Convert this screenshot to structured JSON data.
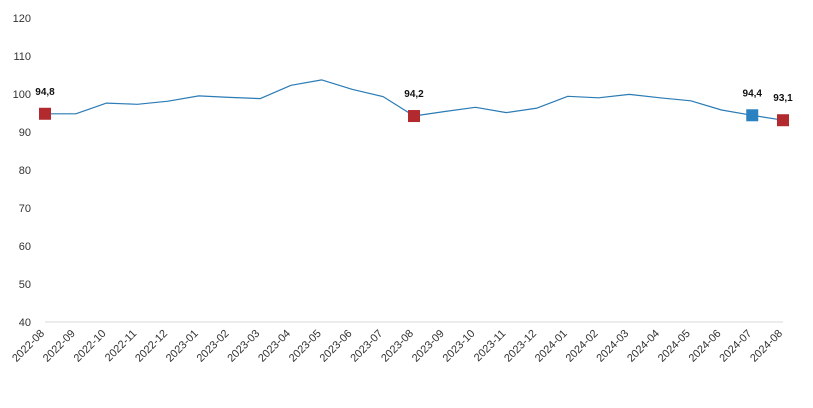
{
  "chart_data": {
    "type": "line",
    "title": "",
    "xlabel": "",
    "ylabel": "",
    "ylim": [
      40,
      120
    ],
    "yticks": [
      40,
      50,
      60,
      70,
      80,
      90,
      100,
      110,
      120
    ],
    "grid": false,
    "categories": [
      "2022-08",
      "2022-09",
      "2022-10",
      "2022-11",
      "2022-12",
      "2023-01",
      "2023-02",
      "2023-03",
      "2023-04",
      "2023-05",
      "2023-06",
      "2023-07",
      "2023-08",
      "2023-09",
      "2023-10",
      "2023-11",
      "2023-12",
      "2024-01",
      "2024-02",
      "2024-03",
      "2024-04",
      "2024-05",
      "2024-06",
      "2024-07",
      "2024-08"
    ],
    "series": [
      {
        "values": [
          94.8,
          94.8,
          97.6,
          97.3,
          98.1,
          99.5,
          99.1,
          98.8,
          102.3,
          103.7,
          101.2,
          99.3,
          94.2,
          95.4,
          96.5,
          95.1,
          96.3,
          99.4,
          99.0,
          99.9,
          99.0,
          98.2,
          95.8,
          94.4,
          93.1
        ],
        "color": "#2b7bb5"
      }
    ],
    "highlights": [
      {
        "category": "2022-08",
        "value": 94.8,
        "label": "94,8",
        "color": "#b22a2e"
      },
      {
        "category": "2023-08",
        "value": 94.2,
        "label": "94,2",
        "color": "#b22a2e"
      },
      {
        "category": "2024-07",
        "value": 94.4,
        "label": "94,4",
        "color": "#2b82c0"
      },
      {
        "category": "2024-08",
        "value": 93.1,
        "label": "93,1",
        "color": "#b22a2e"
      }
    ]
  }
}
